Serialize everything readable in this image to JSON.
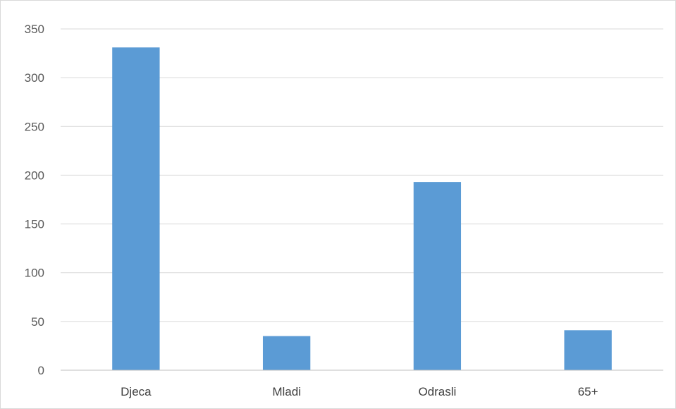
{
  "chart_data": {
    "type": "bar",
    "title": "",
    "xlabel": "",
    "ylabel": "",
    "categories": [
      "Djeca",
      "Mladi",
      "Odrasli",
      "65+"
    ],
    "values": [
      331,
      35,
      193,
      41
    ],
    "ylim": [
      0,
      350
    ],
    "yticks": [
      0,
      50,
      100,
      150,
      200,
      250,
      300,
      350
    ],
    "grid": true,
    "legend": "none",
    "bar_color": "#5b9bd5"
  }
}
